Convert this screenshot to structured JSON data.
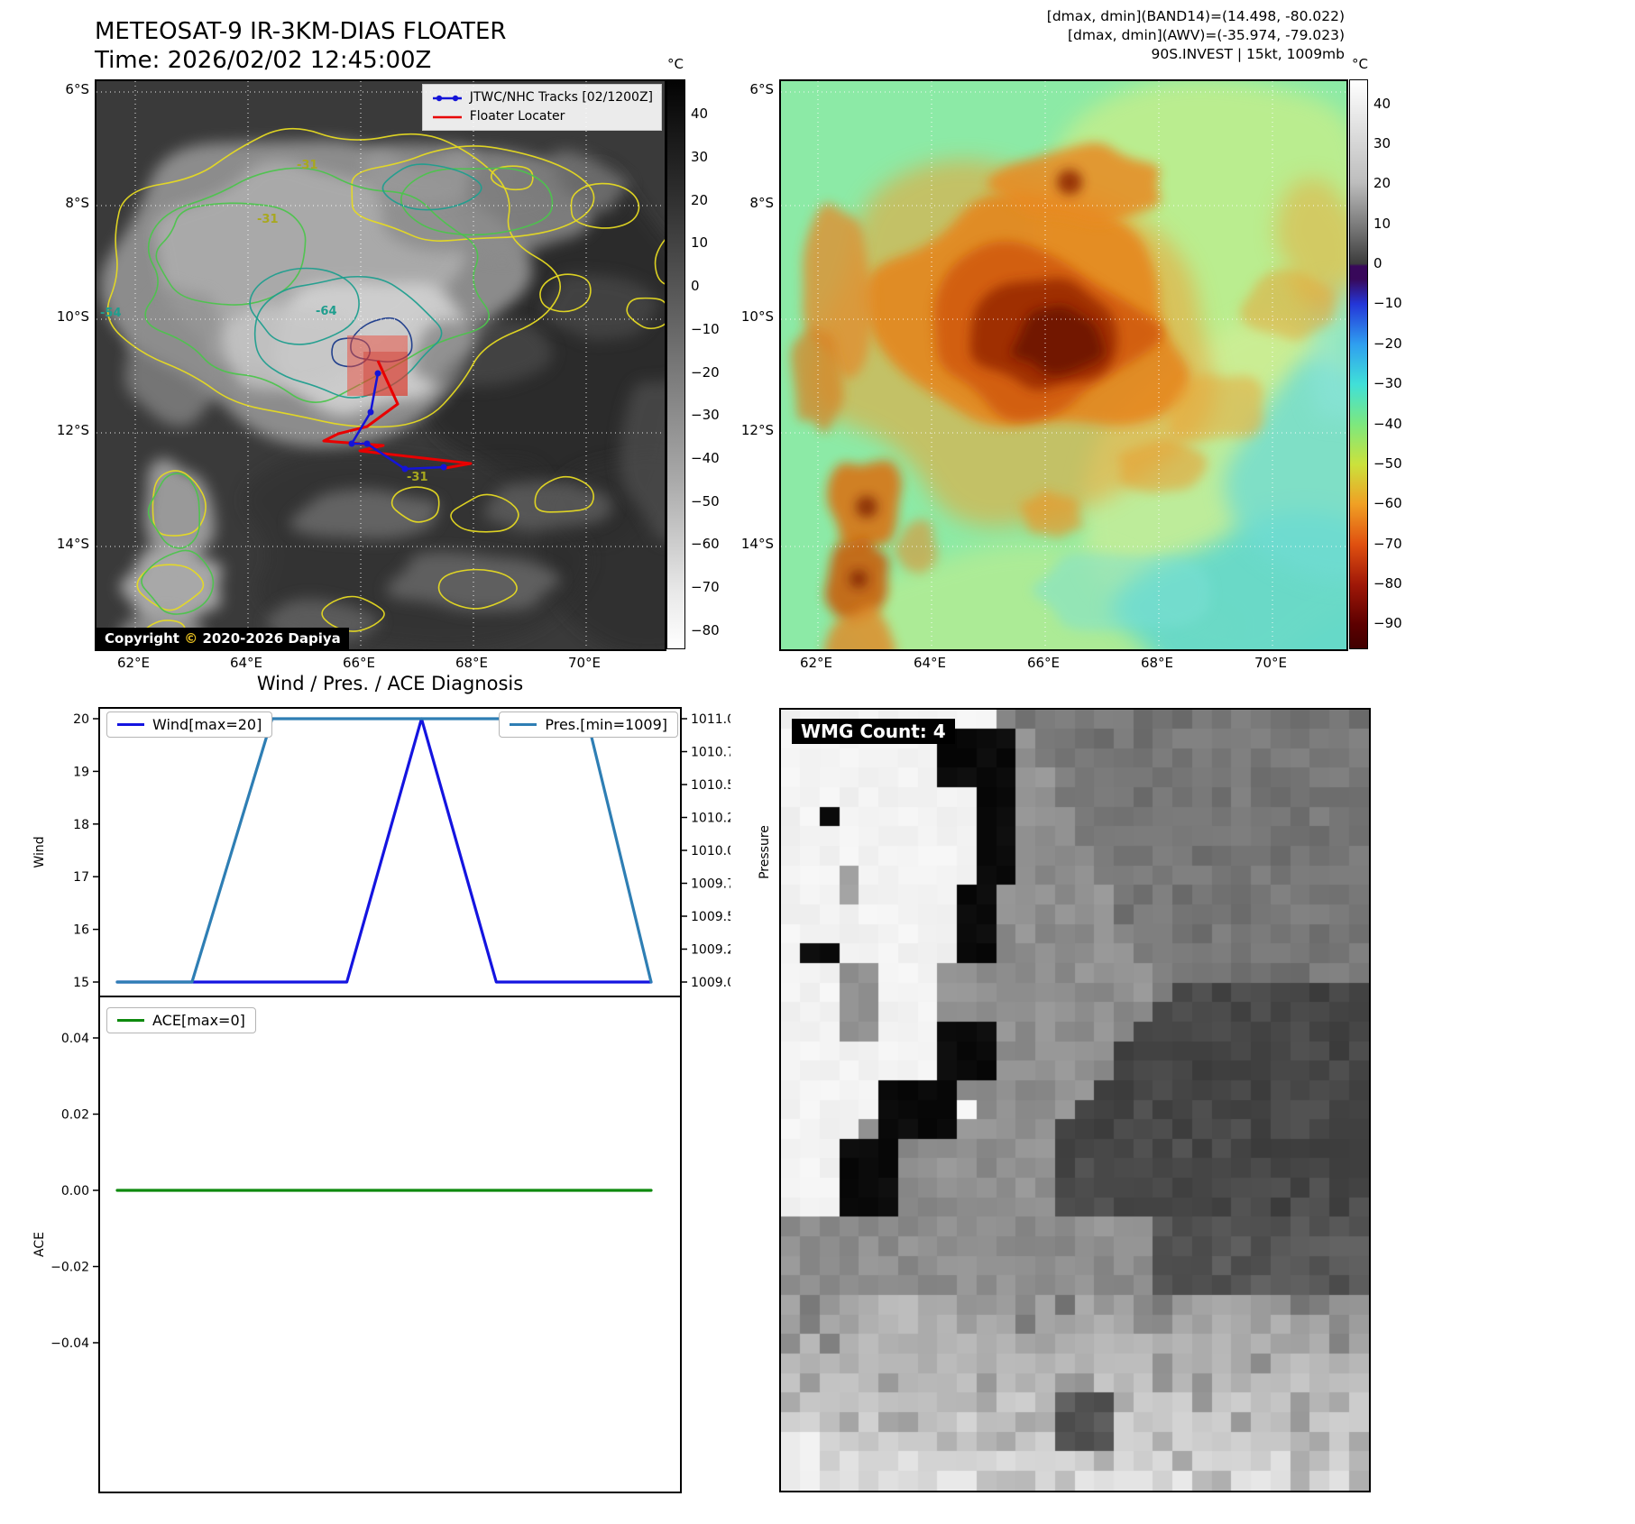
{
  "panel_ir_gray": {
    "title": "METEOSAT-9 IR-3KM-DIAS FLOATER",
    "subtitle": "Time: 2026/02/02 12:45:00Z",
    "legend": {
      "tracks_label": "JTWC/NHC Tracks [02/1200Z]",
      "floater_label": "Floater Locater"
    },
    "copyright_prefix": "Copyright",
    "copyright_symbol": "©",
    "copyright_suffix": "2020-2026 Dapiya",
    "contour_labels": [
      "-31",
      "-31",
      "-54",
      "-64",
      "-31"
    ],
    "lat_ticks": [
      "6°S",
      "8°S",
      "10°S",
      "12°S",
      "14°S"
    ],
    "lon_ticks": [
      "62°E",
      "64°E",
      "66°E",
      "68°E",
      "70°E"
    ],
    "colorbar": {
      "unit": "°C",
      "ticks": [
        "40",
        "30",
        "20",
        "10",
        "0",
        "−10",
        "−20",
        "−30",
        "−40",
        "−50",
        "−60",
        "−70",
        "−80"
      ]
    }
  },
  "panel_ir_color": {
    "header_lines": [
      "[dmax, dmin](BAND14)=(14.498, -80.022)",
      "[dmax, dmin](AWV)=(-35.974, -79.023)",
      "90S.INVEST | 15kt, 1009mb"
    ],
    "lat_ticks": [
      "6°S",
      "8°S",
      "10°S",
      "12°S",
      "14°S"
    ],
    "lon_ticks": [
      "62°E",
      "64°E",
      "66°E",
      "68°E",
      "70°E"
    ],
    "colorbar": {
      "unit": "°C",
      "ticks": [
        "40",
        "30",
        "20",
        "10",
        "0",
        "−10",
        "−20",
        "−30",
        "−40",
        "−50",
        "−60",
        "−70",
        "−80",
        "−90"
      ]
    }
  },
  "wmg": {
    "count_label": "WMG Count: 4"
  },
  "chart_data": [
    {
      "type": "line",
      "title": "Wind / Pres. / ACE Diagnosis",
      "x_unit": "fraction_percent",
      "series": [
        {
          "name": "Wind[max=20]",
          "axis": "left",
          "color": "#1414e0",
          "x": [
            0,
            43,
            57,
            71,
            100
          ],
          "y": [
            15,
            15,
            20,
            15,
            15
          ]
        },
        {
          "name": "Pres.[min=1009]",
          "axis": "right",
          "color": "#2e7eb4",
          "x": [
            0,
            14,
            29,
            88,
            100
          ],
          "y": [
            1009,
            1009,
            1011,
            1011,
            1009
          ]
        }
      ],
      "left_axis": {
        "label": "Wind",
        "min": 15,
        "max": 20,
        "ticks": [
          "15",
          "16",
          "17",
          "18",
          "19",
          "20"
        ]
      },
      "right_axis": {
        "label": "Pressure",
        "min": 1009,
        "max": 1011,
        "ticks": [
          "1009.00",
          "1009.25",
          "1009.50",
          "1009.75",
          "1010.00",
          "1010.25",
          "1010.50",
          "1010.75",
          "1011.00"
        ]
      }
    },
    {
      "type": "line",
      "series": [
        {
          "name": "ACE[max=0]",
          "axis": "left",
          "color": "#0e8a0e",
          "x": [
            0,
            100
          ],
          "y": [
            0,
            0
          ]
        }
      ],
      "left_axis": {
        "label": "ACE",
        "min": -0.08,
        "max": 0.05,
        "ticks": [
          "0.04",
          "0.02",
          "0.00",
          "−0.02",
          "−0.04"
        ]
      }
    }
  ]
}
